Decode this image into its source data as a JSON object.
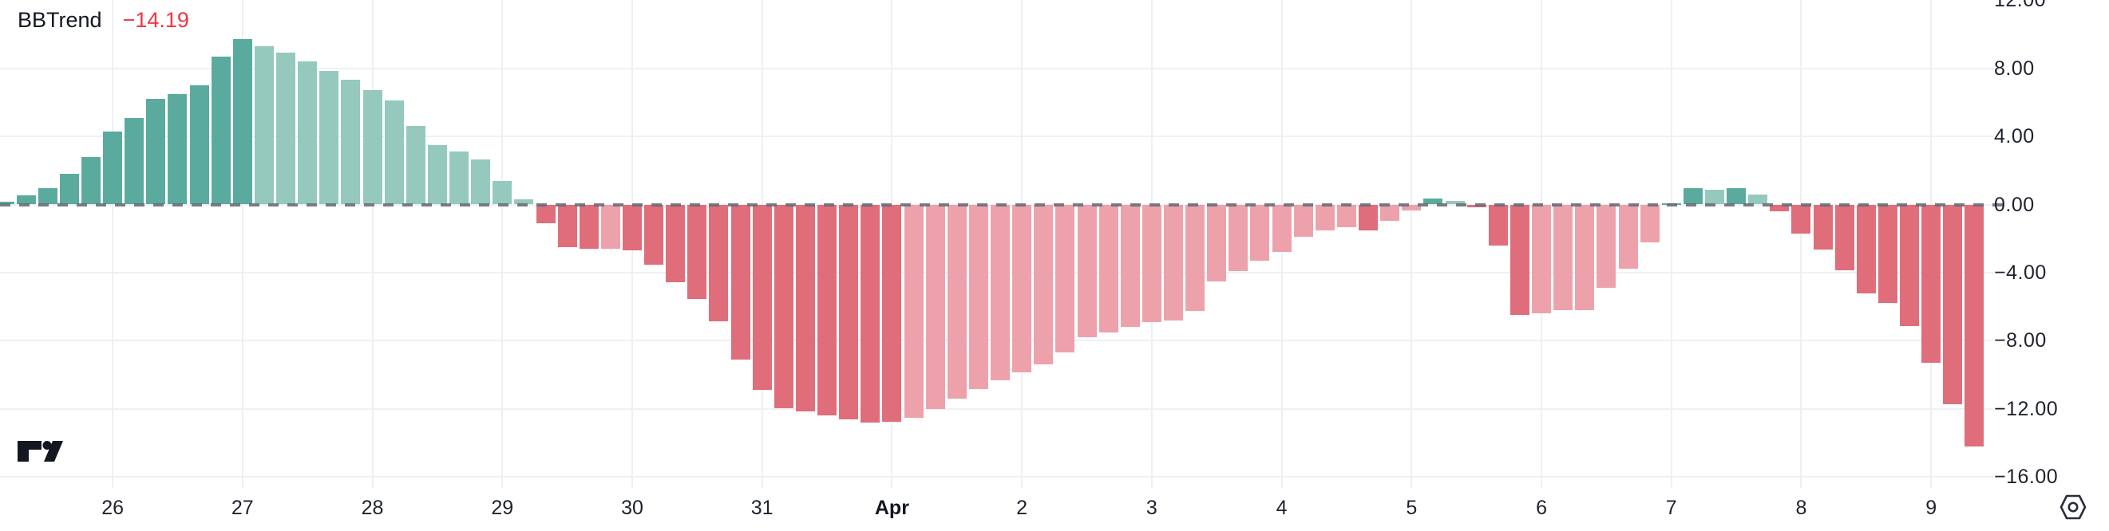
{
  "legend": {
    "title": "BBTrend",
    "value": "−14.19"
  },
  "colors": {
    "value_red": "#f23645",
    "title_text": "#131722",
    "axis_text": "#1e222d",
    "grid": "#eef1f4",
    "zero_dash": "#626871",
    "green_strong": "#5aab9e",
    "green_faded": "#95c9bd",
    "red_strong": "#e06d7a",
    "red_faded": "#eda2ab"
  },
  "icons": {
    "axis_settings": "hexagon-gear-icon",
    "logo": "tradingview-logo"
  },
  "chart_data": {
    "type": "bar",
    "title": "BBTrend",
    "current_value": -14.19,
    "legend_position": "top-left",
    "grid": "on",
    "ylim": [
      -16.5,
      12
    ],
    "y_tick_values": [
      12,
      8,
      4,
      0,
      -4,
      -8,
      -12,
      -16
    ],
    "y_tick_labels": [
      "12.00",
      "8.00",
      "4.00",
      "0.00",
      "−4.00",
      "−8.00",
      "−12.00",
      "−16.00"
    ],
    "x_tick_labels": [
      "26",
      "27",
      "28",
      "29",
      "30",
      "31",
      "Apr",
      "2",
      "3",
      "4",
      "5",
      "6",
      "7",
      "8",
      "9"
    ],
    "x_bold_label": "Apr",
    "bars_per_x_tick": 6,
    "color_legend": {
      "gd": "green_strong",
      "gl": "green_faded",
      "rd": "red_strong",
      "rl": "red_faded"
    },
    "bars": [
      {
        "v": 0.15,
        "c": "gd"
      },
      {
        "v": 0.55,
        "c": "gd"
      },
      {
        "v": 0.95,
        "c": "gd"
      },
      {
        "v": 1.8,
        "c": "gd"
      },
      {
        "v": 2.8,
        "c": "gd"
      },
      {
        "v": 4.3,
        "c": "gd"
      },
      {
        "v": 5.1,
        "c": "gd"
      },
      {
        "v": 6.2,
        "c": "gd"
      },
      {
        "v": 6.5,
        "c": "gd"
      },
      {
        "v": 7.0,
        "c": "gd"
      },
      {
        "v": 8.7,
        "c": "gd"
      },
      {
        "v": 9.7,
        "c": "gd"
      },
      {
        "v": 9.3,
        "c": "gl"
      },
      {
        "v": 8.9,
        "c": "gl"
      },
      {
        "v": 8.4,
        "c": "gl"
      },
      {
        "v": 7.85,
        "c": "gl"
      },
      {
        "v": 7.3,
        "c": "gl"
      },
      {
        "v": 6.7,
        "c": "gl"
      },
      {
        "v": 6.1,
        "c": "gl"
      },
      {
        "v": 4.6,
        "c": "gl"
      },
      {
        "v": 3.5,
        "c": "gl"
      },
      {
        "v": 3.1,
        "c": "gl"
      },
      {
        "v": 2.65,
        "c": "gl"
      },
      {
        "v": 1.4,
        "c": "gl"
      },
      {
        "v": 0.3,
        "c": "gl"
      },
      {
        "v": -1.1,
        "c": "rd"
      },
      {
        "v": -2.5,
        "c": "rd"
      },
      {
        "v": -2.6,
        "c": "rd"
      },
      {
        "v": -2.6,
        "c": "rl"
      },
      {
        "v": -2.7,
        "c": "rd"
      },
      {
        "v": -3.55,
        "c": "rd"
      },
      {
        "v": -4.55,
        "c": "rd"
      },
      {
        "v": -5.55,
        "c": "rd"
      },
      {
        "v": -6.85,
        "c": "rd"
      },
      {
        "v": -9.1,
        "c": "rd"
      },
      {
        "v": -10.9,
        "c": "rd"
      },
      {
        "v": -11.95,
        "c": "rd"
      },
      {
        "v": -12.15,
        "c": "rd"
      },
      {
        "v": -12.4,
        "c": "rd"
      },
      {
        "v": -12.6,
        "c": "rd"
      },
      {
        "v": -12.8,
        "c": "rd"
      },
      {
        "v": -12.75,
        "c": "rd"
      },
      {
        "v": -12.5,
        "c": "rl"
      },
      {
        "v": -12.0,
        "c": "rl"
      },
      {
        "v": -11.4,
        "c": "rl"
      },
      {
        "v": -10.85,
        "c": "rl"
      },
      {
        "v": -10.3,
        "c": "rl"
      },
      {
        "v": -9.85,
        "c": "rl"
      },
      {
        "v": -9.4,
        "c": "rl"
      },
      {
        "v": -8.7,
        "c": "rl"
      },
      {
        "v": -7.8,
        "c": "rl"
      },
      {
        "v": -7.5,
        "c": "rl"
      },
      {
        "v": -7.2,
        "c": "rl"
      },
      {
        "v": -6.9,
        "c": "rl"
      },
      {
        "v": -6.8,
        "c": "rl"
      },
      {
        "v": -6.25,
        "c": "rl"
      },
      {
        "v": -4.5,
        "c": "rl"
      },
      {
        "v": -3.9,
        "c": "rl"
      },
      {
        "v": -3.3,
        "c": "rl"
      },
      {
        "v": -2.8,
        "c": "rl"
      },
      {
        "v": -1.9,
        "c": "rl"
      },
      {
        "v": -1.5,
        "c": "rl"
      },
      {
        "v": -1.35,
        "c": "rl"
      },
      {
        "v": -1.5,
        "c": "rd"
      },
      {
        "v": -0.95,
        "c": "rl"
      },
      {
        "v": -0.35,
        "c": "rl"
      },
      {
        "v": 0.35,
        "c": "gd"
      },
      {
        "v": 0.2,
        "c": "gl"
      },
      {
        "v": -0.15,
        "c": "rd"
      },
      {
        "v": -2.4,
        "c": "rd"
      },
      {
        "v": -6.5,
        "c": "rd"
      },
      {
        "v": -6.4,
        "c": "rl"
      },
      {
        "v": -6.2,
        "c": "rl"
      },
      {
        "v": -6.2,
        "c": "rl"
      },
      {
        "v": -4.9,
        "c": "rl"
      },
      {
        "v": -3.75,
        "c": "rl"
      },
      {
        "v": -2.2,
        "c": "rl"
      },
      {
        "v": 0.05,
        "c": "gd"
      },
      {
        "v": 0.95,
        "c": "gd"
      },
      {
        "v": 0.85,
        "c": "gl"
      },
      {
        "v": 0.95,
        "c": "gd"
      },
      {
        "v": 0.6,
        "c": "gl"
      },
      {
        "v": -0.4,
        "c": "rd"
      },
      {
        "v": -1.7,
        "c": "rd"
      },
      {
        "v": -2.65,
        "c": "rd"
      },
      {
        "v": -3.85,
        "c": "rd"
      },
      {
        "v": -5.2,
        "c": "rd"
      },
      {
        "v": -5.8,
        "c": "rd"
      },
      {
        "v": -7.15,
        "c": "rd"
      },
      {
        "v": -9.3,
        "c": "rd"
      },
      {
        "v": -11.7,
        "c": "rd"
      },
      {
        "v": -14.19,
        "c": "rd"
      }
    ]
  }
}
